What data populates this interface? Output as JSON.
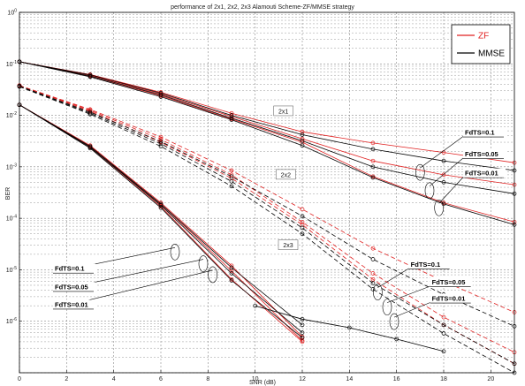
{
  "chart_data": {
    "type": "line",
    "title": "performance of 2x1, 2x2, 2x3 Alamouti Scheme-ZF/MMSE strategy",
    "xlabel": "SNR (dB)",
    "ylabel": "BER",
    "xlim": [
      0,
      21
    ],
    "ylim_log10": [
      -7,
      0
    ],
    "log_y": true,
    "grid": true,
    "x_ticks": [
      0,
      2,
      4,
      6,
      8,
      10,
      12,
      14,
      16,
      18,
      20
    ],
    "x_tick_labels": [
      "0",
      "2",
      "4",
      "6",
      "8",
      "10",
      "12",
      "14",
      "16",
      "18",
      "20"
    ],
    "y_ticks_exp": [
      0,
      -1,
      -2,
      -3,
      -4,
      -5,
      -6
    ],
    "y_tick_labels": [
      "10^0",
      "10^-1",
      "10^-2",
      "10^-3",
      "10^-4",
      "10^-5",
      "10^-6"
    ],
    "legend": {
      "position": "top-right",
      "entries": [
        {
          "label": "ZF",
          "color": "#e02020"
        },
        {
          "label": "MMSE",
          "color": "#000000"
        }
      ]
    },
    "scheme_labels": [
      {
        "text": "2x1",
        "x": 11.2,
        "y": 0.012
      },
      {
        "text": "2x2",
        "x": 11.3,
        "y": 0.0007
      },
      {
        "text": "2x3",
        "x": 11.4,
        "y": 3e-05
      }
    ],
    "annotations": [
      {
        "text": "FdTS=0.1",
        "lx": 18.9,
        "ly": 0.0042,
        "px": 17.0,
        "py": 0.00095
      },
      {
        "text": "FdTS=0.05",
        "lx": 18.9,
        "ly": 0.0016,
        "px": 17.4,
        "py": 0.00042
      },
      {
        "text": "FdTS=0.01",
        "lx": 18.9,
        "ly": 0.00068,
        "px": 17.8,
        "py": 0.000195
      },
      {
        "text": "FdTS=0.1",
        "lx": 16.6,
        "ly": 1.15e-05,
        "px": 15.2,
        "py": 4.5e-06
      },
      {
        "text": "FdTS=0.05",
        "lx": 17.5,
        "ly": 5.2e-06,
        "px": 15.6,
        "py": 2.3e-06
      },
      {
        "text": "FdTS=0.01",
        "lx": 17.5,
        "ly": 2.5e-06,
        "px": 15.9,
        "py": 1.2e-06
      },
      {
        "text": "FdTS=0.1",
        "lx": 1.5,
        "ly": 9.5e-06,
        "px": 6.6,
        "py": 2.7e-05
      },
      {
        "text": "FdTS=0.05",
        "lx": 1.5,
        "ly": 4.2e-06,
        "px": 7.8,
        "py": 1.6e-05
      },
      {
        "text": "FdTS=0.01",
        "lx": 1.5,
        "ly": 1.9e-06,
        "px": 8.2,
        "py": 9.8e-06
      }
    ],
    "series": [
      {
        "group": "2x1",
        "color": "#e02020",
        "dash": false,
        "x": [
          0,
          3,
          6,
          9,
          12,
          15,
          18,
          21
        ],
        "y": [
          0.11,
          0.062,
          0.028,
          0.011,
          0.0048,
          0.0029,
          0.0019,
          0.0012
        ]
      },
      {
        "group": "2x1",
        "color": "#e02020",
        "dash": false,
        "x": [
          0,
          3,
          6,
          9,
          12,
          15,
          18,
          21
        ],
        "y": [
          0.11,
          0.06,
          0.026,
          0.0095,
          0.0035,
          0.0013,
          0.0007,
          0.00045
        ]
      },
      {
        "group": "2x1",
        "color": "#e02020",
        "dash": false,
        "x": [
          0,
          3,
          6,
          9,
          12,
          15,
          18,
          21
        ],
        "y": [
          0.11,
          0.058,
          0.024,
          0.0085,
          0.003,
          0.00065,
          0.0002,
          8.5e-05
        ]
      },
      {
        "group": "2x1",
        "color": "#000000",
        "dash": false,
        "x": [
          0,
          3,
          6,
          9,
          12,
          15,
          18,
          21
        ],
        "y": [
          0.11,
          0.061,
          0.027,
          0.01,
          0.0042,
          0.0022,
          0.0013,
          0.00085
        ]
      },
      {
        "group": "2x1",
        "color": "#000000",
        "dash": false,
        "x": [
          0,
          3,
          6,
          9,
          12,
          15,
          18,
          21
        ],
        "y": [
          0.11,
          0.058,
          0.025,
          0.0088,
          0.0032,
          0.001,
          0.0005,
          0.0003
        ]
      },
      {
        "group": "2x1",
        "color": "#000000",
        "dash": false,
        "x": [
          0,
          3,
          6,
          9,
          12,
          15,
          18,
          21
        ],
        "y": [
          0.11,
          0.056,
          0.023,
          0.0082,
          0.0026,
          0.00062,
          0.00019,
          7.5e-05
        ]
      },
      {
        "group": "2x2",
        "color": "#e02020",
        "dash": true,
        "x": [
          0,
          3,
          6,
          9,
          12,
          15,
          18,
          21
        ],
        "y": [
          0.038,
          0.013,
          0.0038,
          0.00085,
          0.00015,
          2.6e-05,
          6e-06,
          1.5e-06
        ]
      },
      {
        "group": "2x2",
        "color": "#e02020",
        "dash": true,
        "x": [
          0,
          3,
          6,
          9,
          12,
          15,
          18,
          21
        ],
        "y": [
          0.038,
          0.0125,
          0.0034,
          0.0007,
          8.5e-05,
          8.5e-06,
          1.2e-06,
          2.5e-07
        ]
      },
      {
        "group": "2x2",
        "color": "#e02020",
        "dash": true,
        "x": [
          0,
          3,
          6,
          9,
          12,
          15,
          18,
          21
        ],
        "y": [
          0.038,
          0.012,
          0.003,
          0.0006,
          7.5e-05,
          6.5e-06,
          8.5e-07,
          1.5e-07
        ]
      },
      {
        "group": "2x2",
        "color": "#000000",
        "dash": true,
        "x": [
          0,
          3,
          6,
          9,
          12,
          15,
          18,
          21
        ],
        "y": [
          0.037,
          0.0115,
          0.0031,
          0.00065,
          0.00011,
          1.6e-05,
          3.3e-06,
          8e-07
        ]
      },
      {
        "group": "2x2",
        "color": "#000000",
        "dash": true,
        "x": [
          0,
          3,
          6,
          9,
          12,
          15,
          18,
          21
        ],
        "y": [
          0.037,
          0.011,
          0.0028,
          0.00052,
          6.5e-05,
          5.5e-06,
          8.5e-07,
          1.5e-07
        ]
      },
      {
        "group": "2x2",
        "color": "#000000",
        "dash": true,
        "x": [
          0,
          3,
          6,
          9,
          12,
          15,
          18,
          21
        ],
        "y": [
          0.036,
          0.0105,
          0.0025,
          0.00042,
          5e-05,
          4.2e-06,
          5.8e-07,
          1e-07
        ]
      },
      {
        "group": "2x3",
        "color": "#e02020",
        "dash": false,
        "x": [
          0,
          3,
          6,
          9,
          12
        ],
        "y": [
          0.016,
          0.0026,
          0.0002,
          1.2e-05,
          5e-07
        ]
      },
      {
        "group": "2x3",
        "color": "#e02020",
        "dash": false,
        "x": [
          0,
          3,
          6,
          9,
          12
        ],
        "y": [
          0.016,
          0.0025,
          0.00019,
          9.5e-06,
          4.2e-07
        ]
      },
      {
        "group": "2x3",
        "color": "#e02020",
        "dash": false,
        "x": [
          0,
          3,
          6,
          9,
          12
        ],
        "y": [
          0.016,
          0.0024,
          0.00017,
          6.5e-06,
          4e-07
        ]
      },
      {
        "group": "2x3",
        "color": "#000000",
        "dash": false,
        "x": [
          0,
          3,
          6,
          9,
          12
        ],
        "y": [
          0.016,
          0.0025,
          0.00019,
          1.1e-05,
          8.5e-07
        ]
      },
      {
        "group": "2x3",
        "color": "#000000",
        "dash": false,
        "x": [
          0,
          3,
          6,
          9,
          12
        ],
        "y": [
          0.016,
          0.0024,
          0.00018,
          8.5e-06,
          6e-07
        ]
      },
      {
        "group": "2x3",
        "color": "#000000",
        "dash": false,
        "x": [
          0,
          3,
          6,
          9,
          12
        ],
        "y": [
          0.016,
          0.0023,
          0.00016,
          6.2e-06,
          4.8e-07
        ]
      },
      {
        "group": "extra",
        "color": "#000000",
        "dash": false,
        "x": [
          10,
          12,
          14,
          16,
          18
        ],
        "y": [
          2e-06,
          1.1e-06,
          7.5e-07,
          4.5e-07,
          2.6e-07
        ]
      }
    ]
  }
}
